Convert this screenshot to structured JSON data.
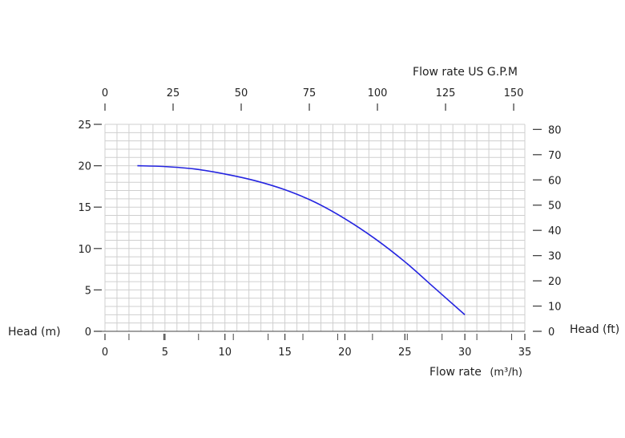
{
  "chart_data": {
    "type": "line",
    "x_axis": {
      "label": "Flow rate",
      "unit": "(m³/h)",
      "range": [
        0,
        35
      ],
      "ticks": [
        "0",
        "5",
        "10",
        "15",
        "20",
        "25",
        "30",
        "35"
      ]
    },
    "top_axis": {
      "label": "Flow rate US  G.P.M",
      "range_gpm": [
        0,
        154.1
      ],
      "ticks": [
        "0",
        "25",
        "50",
        "75",
        "100",
        "125",
        "150"
      ]
    },
    "y_axis_left": {
      "label": "Head (m)",
      "range": [
        0,
        25
      ],
      "ticks": [
        "0",
        "5",
        "10",
        "15",
        "20",
        "25"
      ]
    },
    "y_axis_right": {
      "label": "Head (ft)",
      "range_ft": [
        0,
        82.02
      ],
      "ticks": [
        "0",
        "10",
        "20",
        "30",
        "40",
        "50",
        "60",
        "70",
        "80"
      ]
    },
    "grid": true,
    "series": [
      {
        "color": "#2424e0",
        "x": [
          2.7,
          5,
          7.5,
          10,
          12.5,
          15,
          17.5,
          20,
          22.5,
          25,
          27.5,
          30
        ],
        "y": [
          20.0,
          19.9,
          19.6,
          19.0,
          18.2,
          17.1,
          15.6,
          13.6,
          11.2,
          8.4,
          5.2,
          2.0
        ]
      }
    ]
  }
}
